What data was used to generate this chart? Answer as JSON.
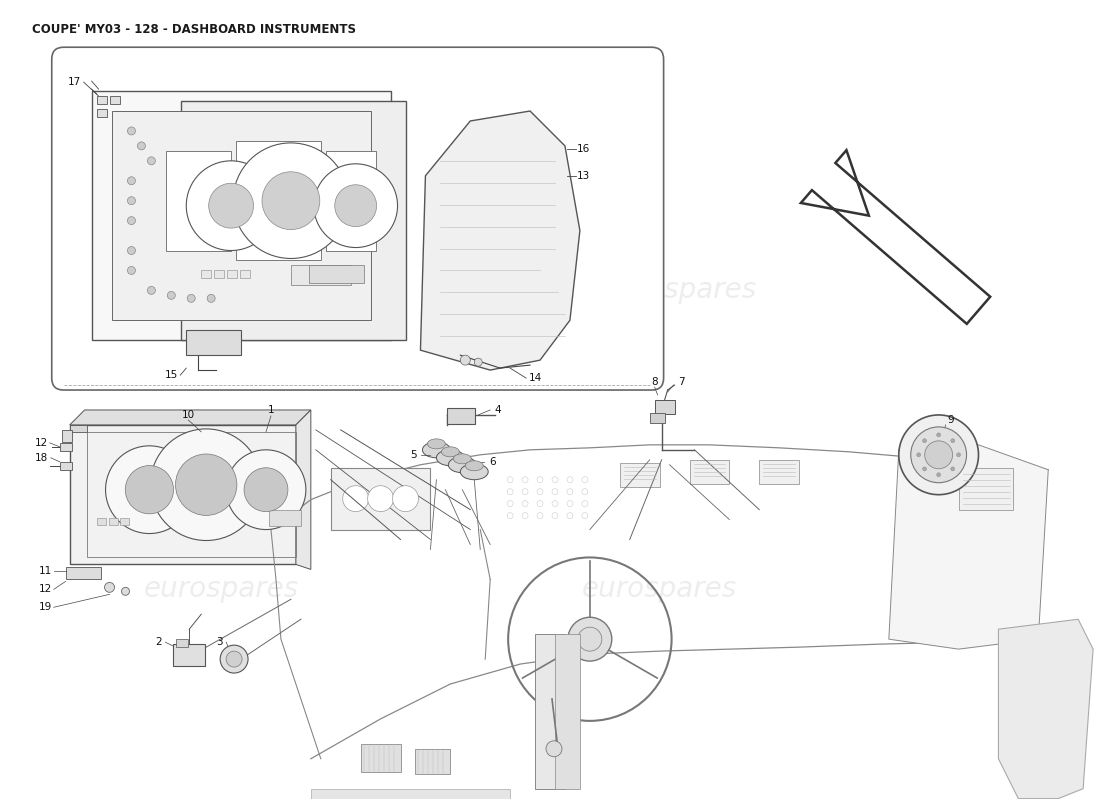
{
  "title": "COUPE' MY03 - 128 - DASHBOARD INSTRUMENTS",
  "title_fontsize": 8.5,
  "title_color": "#1a1a1a",
  "bg": "#ffffff",
  "line_color": "#444444",
  "light_line": "#888888",
  "watermark": "eurospares",
  "wm_color": "#cccccc",
  "wm_alpha": 0.35,
  "wm_size": 20,
  "label_size": 7.5,
  "label_color": "#111111"
}
